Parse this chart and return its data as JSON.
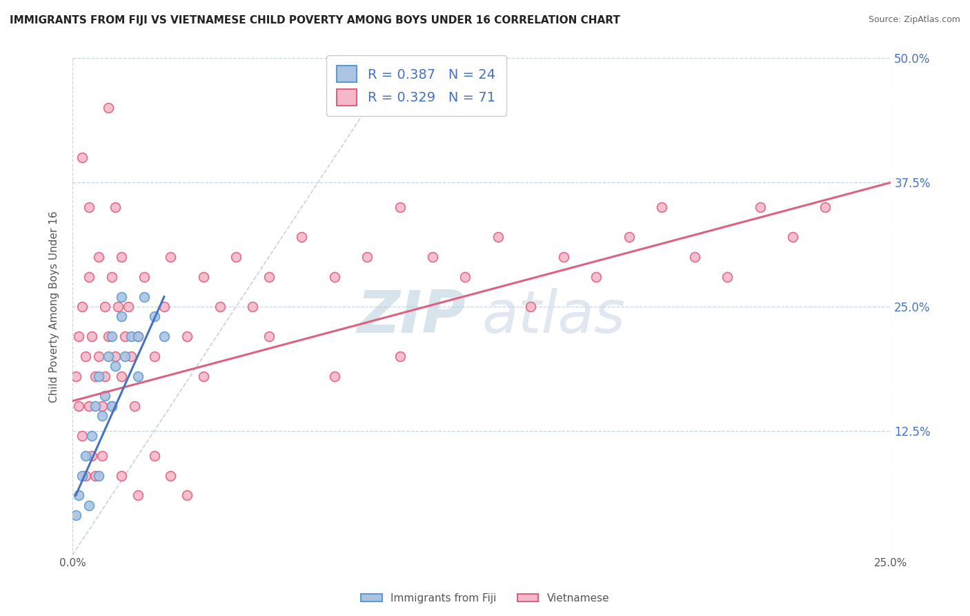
{
  "title": "IMMIGRANTS FROM FIJI VS VIETNAMESE CHILD POVERTY AMONG BOYS UNDER 16 CORRELATION CHART",
  "source": "Source: ZipAtlas.com",
  "ylabel": "Child Poverty Among Boys Under 16",
  "xlim": [
    0,
    0.25
  ],
  "ylim": [
    0,
    0.5
  ],
  "xticks": [
    0.0,
    0.25
  ],
  "xtick_labels": [
    "0.0%",
    "25.0%"
  ],
  "ytick_labels": [
    "12.5%",
    "25.0%",
    "37.5%",
    "50.0%"
  ],
  "yticks": [
    0.125,
    0.25,
    0.375,
    0.5
  ],
  "fiji_color": "#aac4e2",
  "fiji_edge_color": "#5b9bd5",
  "vietnamese_color": "#f5b8c8",
  "vietnamese_edge_color": "#e06080",
  "trendline_fiji_color": "#4472c4",
  "trendline_vietnamese_color": "#e06080",
  "diagonal_color": "#b8c8d8",
  "R_fiji": 0.387,
  "N_fiji": 24,
  "R_vietnamese": 0.329,
  "N_vietnamese": 71,
  "legend_fiji_label": "R = 0.387   N = 24",
  "legend_vietnamese_label": "R = 0.329   N = 71",
  "watermark_zip": "ZIP",
  "watermark_atlas": "atlas",
  "watermark_color_zip": "#b8cede",
  "watermark_color_atlas": "#c8d4e4",
  "fiji_x": [
    0.001,
    0.002,
    0.003,
    0.004,
    0.005,
    0.006,
    0.007,
    0.008,
    0.009,
    0.01,
    0.011,
    0.012,
    0.013,
    0.015,
    0.016,
    0.018,
    0.02,
    0.022,
    0.025,
    0.028,
    0.008,
    0.012,
    0.015,
    0.02
  ],
  "fiji_y": [
    0.04,
    0.06,
    0.08,
    0.1,
    0.05,
    0.12,
    0.15,
    0.18,
    0.14,
    0.16,
    0.2,
    0.22,
    0.19,
    0.24,
    0.2,
    0.22,
    0.18,
    0.26,
    0.24,
    0.22,
    0.08,
    0.15,
    0.26,
    0.22
  ],
  "viet_x": [
    0.001,
    0.002,
    0.002,
    0.003,
    0.003,
    0.004,
    0.004,
    0.005,
    0.005,
    0.006,
    0.006,
    0.007,
    0.008,
    0.008,
    0.009,
    0.01,
    0.01,
    0.011,
    0.012,
    0.012,
    0.013,
    0.014,
    0.015,
    0.015,
    0.016,
    0.017,
    0.018,
    0.019,
    0.02,
    0.022,
    0.025,
    0.028,
    0.03,
    0.035,
    0.04,
    0.045,
    0.05,
    0.055,
    0.06,
    0.07,
    0.08,
    0.09,
    0.1,
    0.11,
    0.12,
    0.13,
    0.14,
    0.15,
    0.16,
    0.17,
    0.18,
    0.19,
    0.2,
    0.21,
    0.22,
    0.23,
    0.003,
    0.005,
    0.007,
    0.009,
    0.011,
    0.013,
    0.015,
    0.02,
    0.025,
    0.03,
    0.035,
    0.04,
    0.06,
    0.08,
    0.1
  ],
  "viet_y": [
    0.18,
    0.15,
    0.22,
    0.12,
    0.25,
    0.08,
    0.2,
    0.15,
    0.28,
    0.1,
    0.22,
    0.18,
    0.2,
    0.3,
    0.15,
    0.18,
    0.25,
    0.22,
    0.15,
    0.28,
    0.2,
    0.25,
    0.18,
    0.3,
    0.22,
    0.25,
    0.2,
    0.15,
    0.22,
    0.28,
    0.2,
    0.25,
    0.3,
    0.22,
    0.28,
    0.25,
    0.3,
    0.25,
    0.28,
    0.32,
    0.28,
    0.3,
    0.35,
    0.3,
    0.28,
    0.32,
    0.25,
    0.3,
    0.28,
    0.32,
    0.35,
    0.3,
    0.28,
    0.35,
    0.32,
    0.35,
    0.4,
    0.35,
    0.08,
    0.1,
    0.45,
    0.35,
    0.08,
    0.06,
    0.1,
    0.08,
    0.06,
    0.18,
    0.22,
    0.18,
    0.2
  ],
  "background_color": "#ffffff",
  "grid_color": "#c8d4de",
  "ytick_color": "#4472c4",
  "marker_size": 100,
  "marker_linewidth": 1.2,
  "viet_trendline_x0": 0.0,
  "viet_trendline_y0": 0.155,
  "viet_trendline_x1": 0.25,
  "viet_trendline_y1": 0.375,
  "fiji_trendline_x0": 0.001,
  "fiji_trendline_y0": 0.06,
  "fiji_trendline_x1": 0.028,
  "fiji_trendline_y1": 0.26
}
